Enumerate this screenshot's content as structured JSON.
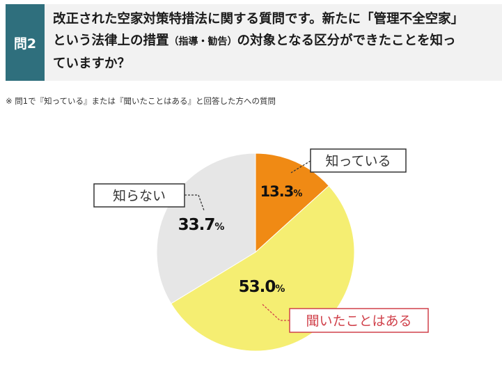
{
  "header": {
    "badge": "問2",
    "question_part1": "改正された空家対策特措法に関する質問です。新たに「管理不全空家」",
    "question_part2": "という法律上の措置",
    "question_small": "（指導・勧告）",
    "question_part3": "の対象となる区分ができたことを知っ",
    "question_part4": "ていますか？"
  },
  "note": "※ 問1で『知っている』または『聞いたことはある』と回答した方への質問",
  "chart_data": {
    "type": "pie",
    "categories": [
      "知っている",
      "聞いたことはある",
      "知らない"
    ],
    "values": [
      13.3,
      53.0,
      33.7
    ],
    "labels": [
      "13.3",
      "53.0",
      "33.7"
    ],
    "unit": "%",
    "colors": [
      "#f08a14",
      "#f5ee72",
      "#e6e6e6"
    ],
    "start_angle_deg": 0,
    "direction": "clockwise",
    "callouts": [
      "知っている",
      "聞いたことはある",
      "知らない"
    ],
    "callout_colors": [
      "#333333",
      "#d0404a",
      "#333333"
    ]
  }
}
